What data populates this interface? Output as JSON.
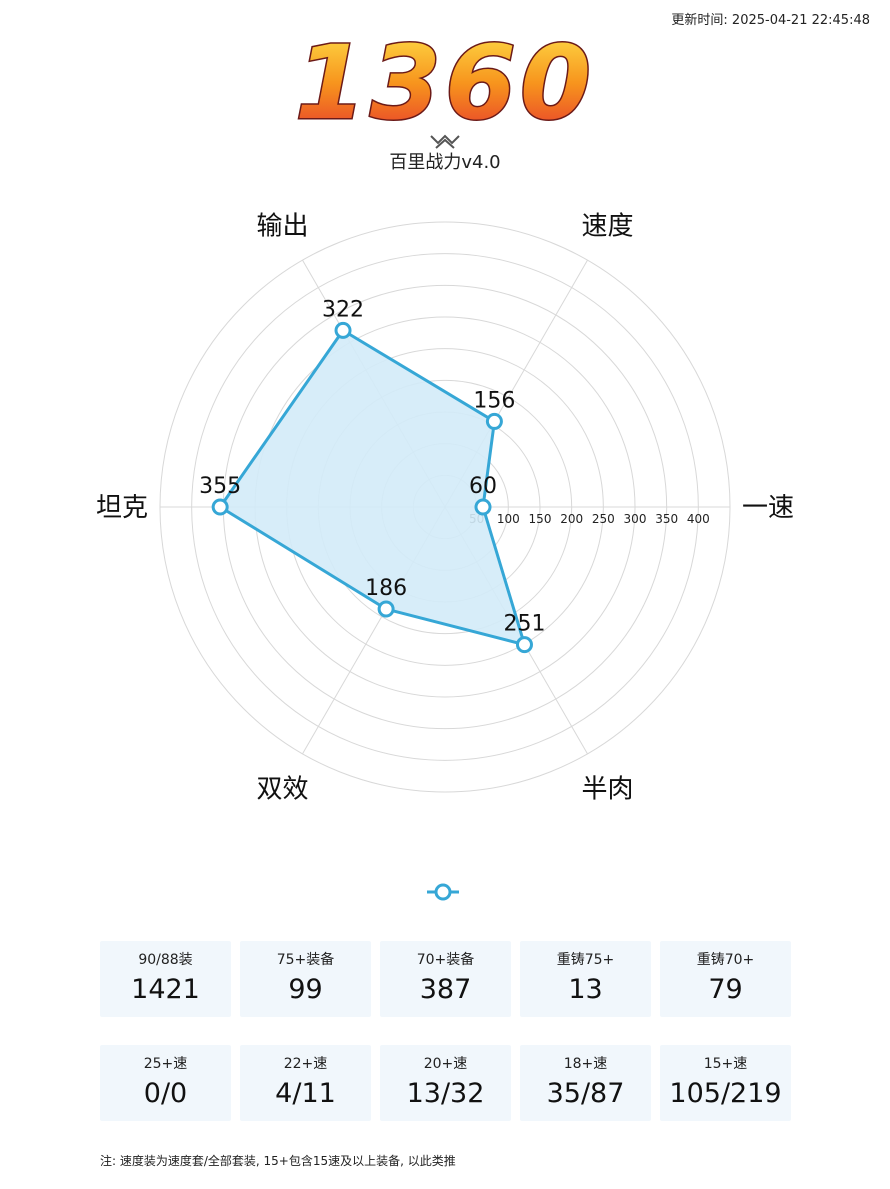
{
  "header": {
    "update_time": "更新时间: 2025-04-21 22:45:48",
    "score": "1360",
    "subtitle": "百里战力v4.0"
  },
  "colors": {
    "series_stroke": "#36a7d6",
    "series_fill": "#d3ebf8",
    "card_bg": "#f1f7fc",
    "grid": "#d8d8d8"
  },
  "chart_data": {
    "type": "radar",
    "axes": [
      "一速",
      "速度",
      "输出",
      "坦克",
      "双效",
      "半肉"
    ],
    "values": [
      60,
      156,
      322,
      355,
      186,
      251
    ],
    "radial_ticks": [
      50,
      100,
      150,
      200,
      250,
      300,
      350,
      400
    ],
    "rlim": [
      0,
      450
    ],
    "grid": true,
    "legend": "bottom-center"
  },
  "stats_row1": [
    {
      "label": "90/88装",
      "value": "1421"
    },
    {
      "label": "75+装备",
      "value": "99"
    },
    {
      "label": "70+装备",
      "value": "387"
    },
    {
      "label": "重铸75+",
      "value": "13"
    },
    {
      "label": "重铸70+",
      "value": "79"
    }
  ],
  "stats_row2": [
    {
      "label": "25+速",
      "value": "0/0"
    },
    {
      "label": "22+速",
      "value": "4/11"
    },
    {
      "label": "20+速",
      "value": "13/32"
    },
    {
      "label": "18+速",
      "value": "35/87"
    },
    {
      "label": "15+速",
      "value": "105/219"
    }
  ],
  "note": "注: 速度装为速度套/全部套装, 15+包含15速及以上装备, 以此类推"
}
